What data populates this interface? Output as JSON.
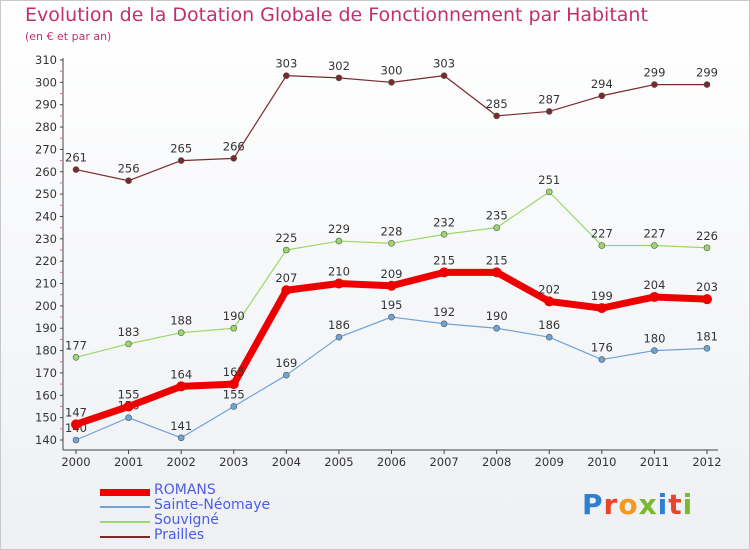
{
  "title": "Evolution de la Dotation Globale de Fonctionnement par Habitant",
  "subtitle": "(en € et par an)",
  "logo_text": "Proxiti",
  "colors": {
    "title": "#c0306e",
    "axis": "#333333",
    "grid": "#cfcfcf",
    "legend_text": "#4a5de8"
  },
  "chart_data": {
    "type": "line",
    "title": "Evolution de la Dotation Globale de Fonctionnement par Habitant",
    "subtitle": "(en € et par an)",
    "x": [
      "2000",
      "2001",
      "2002",
      "2003",
      "2004",
      "2005",
      "2006",
      "2007",
      "2008",
      "2009",
      "2010",
      "2011",
      "2012"
    ],
    "ylim": [
      140,
      310
    ],
    "yticks": [
      140,
      150,
      160,
      170,
      180,
      190,
      200,
      210,
      220,
      230,
      240,
      250,
      260,
      270,
      280,
      290,
      300,
      310
    ],
    "grid": false,
    "legend_position": "bottom-left",
    "series": [
      {
        "name": "Prailles",
        "color": "#7a2a2a",
        "values": [
          261,
          256,
          265,
          266,
          303,
          302,
          300,
          303,
          285,
          287,
          294,
          299,
          299
        ]
      },
      {
        "name": "Souvigné",
        "color": "#9ad86a",
        "values": [
          177,
          183,
          188,
          190,
          225,
          229,
          228,
          232,
          235,
          251,
          227,
          227,
          226
        ]
      },
      {
        "name": "Sainte-Néomaye",
        "color": "#6ea3d6",
        "values": [
          140,
          150,
          141,
          155,
          169,
          186,
          195,
          192,
          190,
          186,
          176,
          180,
          181
        ]
      },
      {
        "name": "ROMANS",
        "color": "#ee0000",
        "values": [
          147,
          155,
          164,
          165,
          207,
          210,
          209,
          215,
          215,
          202,
          199,
          204,
          203
        ]
      }
    ],
    "legend_order": [
      "ROMANS",
      "Sainte-Néomaye",
      "Souvigné",
      "Prailles"
    ]
  }
}
